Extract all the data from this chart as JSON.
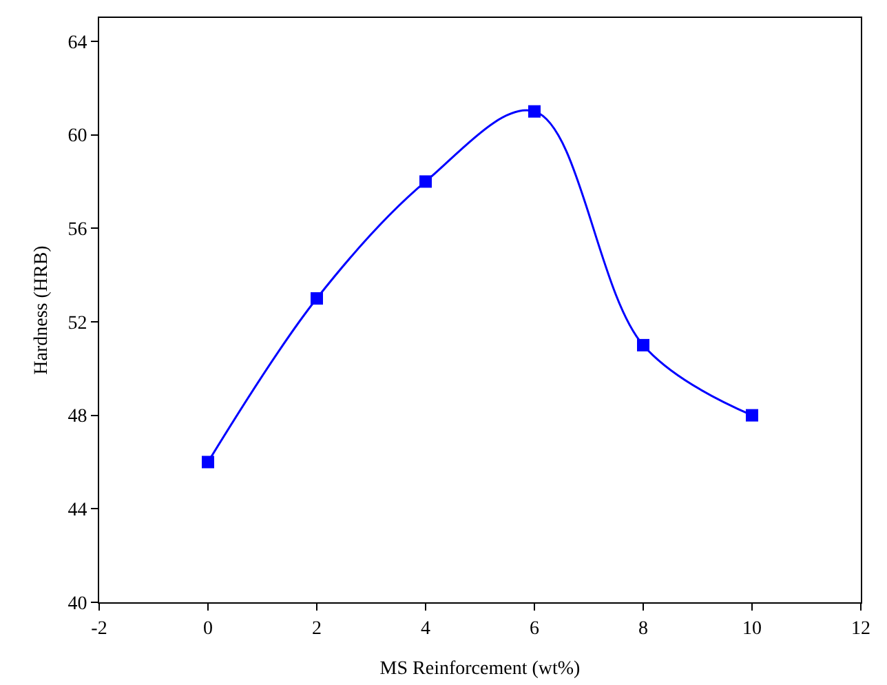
{
  "chart_data": {
    "type": "line",
    "xlabel": "MS Reinforcement (wt%)",
    "ylabel": "Hardness (HRB)",
    "x": [
      0,
      2,
      4,
      6,
      8,
      10
    ],
    "series": [
      {
        "color": "#0000ff",
        "values": [
          46,
          53,
          58,
          61,
          51,
          48
        ]
      }
    ],
    "xlim": [
      -2,
      12
    ],
    "xticks": [
      -2,
      0,
      2,
      4,
      6,
      8,
      10,
      12
    ],
    "ylim": [
      40,
      65
    ],
    "yticks": [
      40,
      44,
      48,
      52,
      56,
      60,
      64
    ],
    "marker": "square",
    "line_style": "solid",
    "grid": false
  }
}
